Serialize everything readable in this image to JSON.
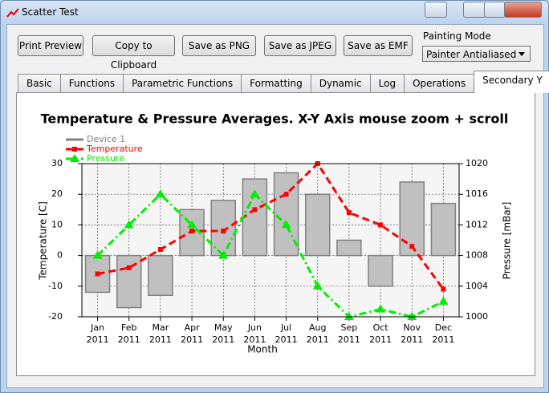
{
  "window": {
    "title": "Scatter Test"
  },
  "toolbar": {
    "buttons": [
      "Print Preview",
      "Copy to Clipboard",
      "Save as PNG",
      "Save as JPEG",
      "Save as EMF"
    ],
    "painting_mode_label": "Painting Mode",
    "painting_mode_value": "Painter Antialiased"
  },
  "tabs": {
    "items": [
      "Basic",
      "Functions",
      "Parametric Functions",
      "Formatting",
      "Dynamic",
      "Log",
      "Operations",
      "Secondary Y"
    ],
    "selected": 7
  },
  "chart_data": {
    "type": "combo",
    "title": "Temperature & Pressure Averages. X-Y Axis mouse zoom + scroll",
    "x_label": "Month",
    "y_label": "Temperature [C]",
    "y2_label": "Pressure [mBar]",
    "categories": [
      "Jan 2011",
      "Feb 2011",
      "Mar 2011",
      "Apr 2011",
      "May 2011",
      "Jun 2011",
      "Jul 2011",
      "Aug 2011",
      "Sep 2011",
      "Oct 2011",
      "Nov 2011",
      "Dec 2011"
    ],
    "series": [
      {
        "name": "Device 1",
        "type": "bar",
        "color": "#808080",
        "values": [
          -12,
          -17,
          -13,
          15,
          18,
          25,
          27,
          20,
          5,
          -10,
          24,
          17
        ]
      },
      {
        "name": "Temperature",
        "type": "line",
        "color": "#ff0000",
        "line_style": "dashed",
        "marker": "square",
        "values": [
          -6,
          -4,
          2,
          8,
          8,
          15,
          20,
          30,
          14,
          10,
          3,
          -11
        ]
      },
      {
        "name": "Pressure",
        "type": "line",
        "axis": "y2",
        "color": "#00ee00",
        "line_style": "dash-dot",
        "marker": "triangle",
        "values": [
          1008,
          1012,
          1016,
          1012,
          1008,
          1016,
          1012,
          1004,
          1000,
          1001,
          1000,
          1002
        ]
      }
    ],
    "ylim": [
      -20,
      30
    ],
    "yticks": [
      -20,
      -10,
      0,
      10,
      20,
      30
    ],
    "y2lim": [
      1000,
      1020
    ],
    "y2ticks": [
      1000,
      1004,
      1008,
      1012,
      1016,
      1020
    ],
    "grid": true,
    "legend": "top-left"
  }
}
